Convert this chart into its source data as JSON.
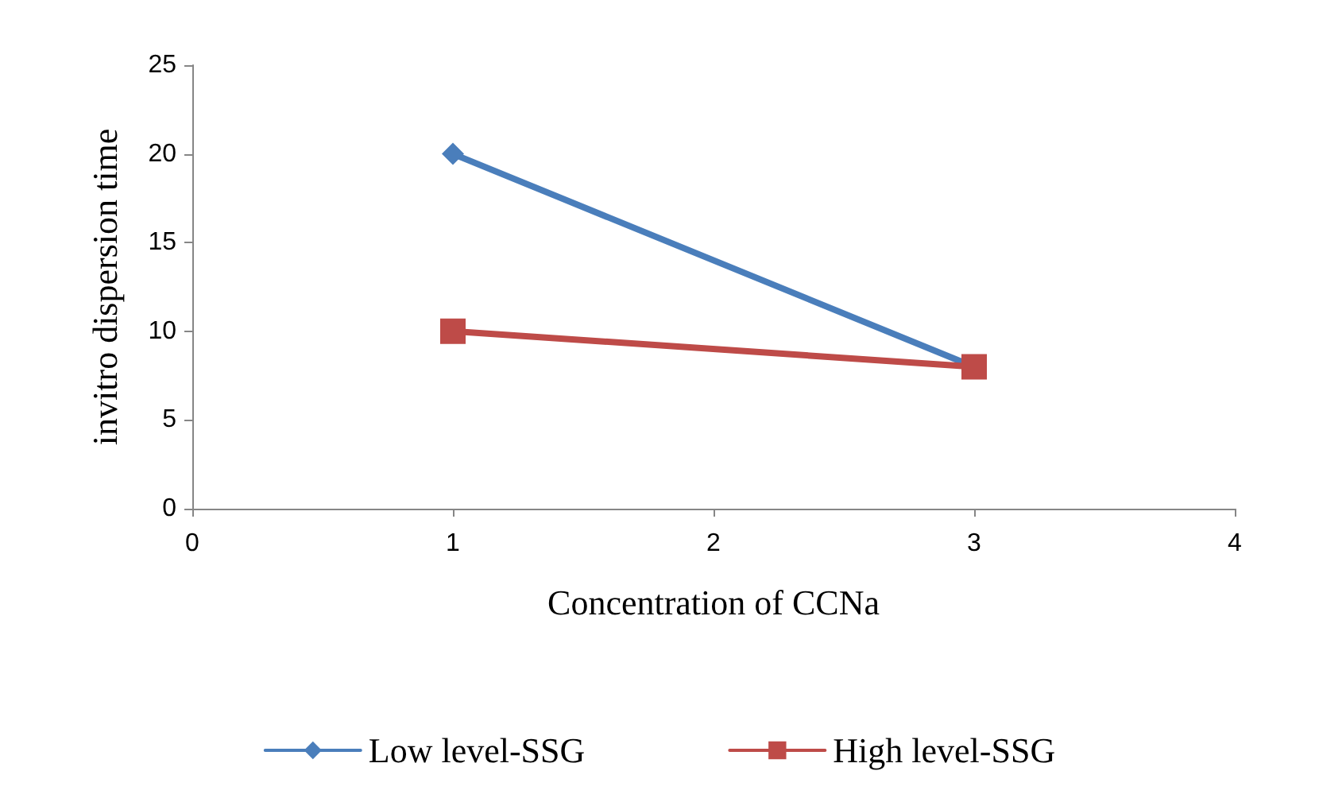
{
  "chart_data": {
    "type": "line",
    "xlabel": "Concentration of CCNa",
    "ylabel": "invitro dispersion time",
    "x": [
      1,
      3
    ],
    "xlim": [
      0,
      4
    ],
    "xticks": [
      0,
      1,
      2,
      3,
      4
    ],
    "ylim": [
      0,
      25
    ],
    "yticks": [
      0,
      5,
      10,
      15,
      20,
      25
    ],
    "grid": false,
    "legend": "bottom",
    "line_style": "solid",
    "series": [
      {
        "name": "Low level-SSG",
        "color": "#4a7ebb",
        "values": [
          20,
          8
        ],
        "marker": "diamond"
      },
      {
        "name": "High level-SSG",
        "color": "#be4b48",
        "values": [
          10,
          8
        ],
        "marker": "square"
      }
    ]
  }
}
